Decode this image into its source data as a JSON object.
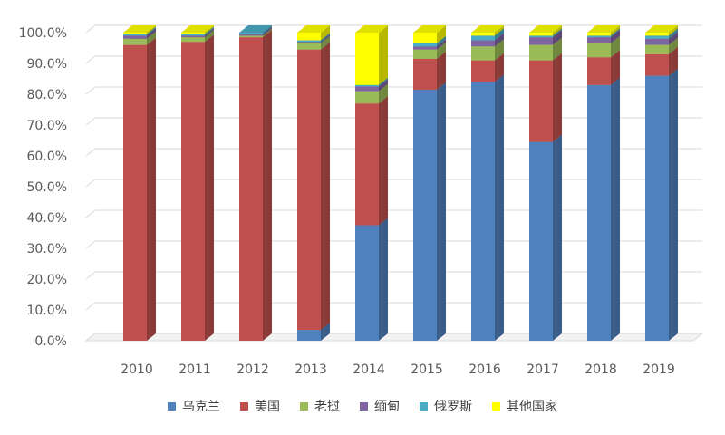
{
  "chart_data": {
    "type": "bar",
    "stacked": true,
    "three_d": true,
    "categories": [
      "2010",
      "2011",
      "2012",
      "2013",
      "2014",
      "2015",
      "2016",
      "2017",
      "2018",
      "2019"
    ],
    "series": [
      {
        "name": "乌克兰",
        "color": "#4F81BD",
        "values": [
          0,
          0,
          0,
          3.5,
          37.5,
          81.5,
          84,
          64.5,
          83,
          86
        ]
      },
      {
        "name": "美国",
        "color": "#C0504D",
        "values": [
          96,
          97,
          98.5,
          91,
          39.5,
          10,
          7,
          26.5,
          9,
          7
        ]
      },
      {
        "name": "老挝",
        "color": "#9BBB59",
        "values": [
          2,
          1.5,
          0.5,
          2,
          4,
          3,
          4.5,
          5,
          4.5,
          3
        ]
      },
      {
        "name": "缅甸",
        "color": "#8064A2",
        "values": [
          1,
          0.5,
          0.5,
          0.5,
          1.5,
          1,
          2,
          2.5,
          2,
          2
        ]
      },
      {
        "name": "俄罗斯",
        "color": "#4BACC6",
        "values": [
          0.5,
          0.5,
          0.5,
          0.5,
          0.5,
          1,
          1.5,
          0.5,
          0.5,
          1
        ]
      },
      {
        "name": "其他国家",
        "color": "#FFFF00",
        "values": [
          0.5,
          0.5,
          0,
          2.5,
          17,
          3.5,
          1,
          1,
          1,
          1
        ]
      }
    ],
    "title": "",
    "xlabel": "",
    "ylabel": "",
    "ylim": [
      0,
      100
    ],
    "yticks": [
      "0.0%",
      "10.0%",
      "20.0%",
      "30.0%",
      "40.0%",
      "50.0%",
      "60.0%",
      "70.0%",
      "80.0%",
      "90.0%",
      "100.0%"
    ],
    "grid": true,
    "legend_position": "bottom"
  }
}
